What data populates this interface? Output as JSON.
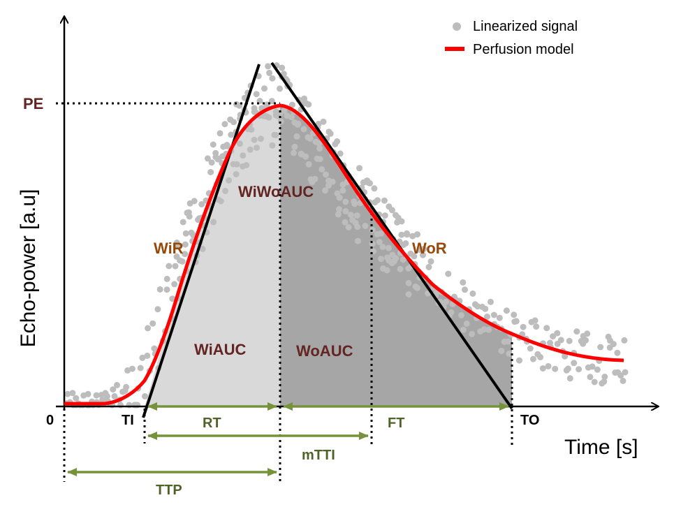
{
  "legend": {
    "signal_label": "Linearized signal",
    "model_label": "Perfusion model"
  },
  "axes": {
    "xlabel": "Time [s]",
    "ylabel": "Echo-power [a.u]",
    "origin_label": "0"
  },
  "parameters": {
    "pe": "PE",
    "wir": "WiR",
    "wor": "WoR",
    "wiwoauc": "WiWoAUC",
    "wiauc": "WiAUC",
    "woauc": "WoAUC",
    "ti": "TI",
    "to": "TO",
    "rt": "RT",
    "ft": "FT",
    "mtti": "mTTI",
    "ttp": "TTP"
  },
  "colors": {
    "signal": "#bdbdbd",
    "model": "#ff0000",
    "tangent": "#000000",
    "wash_in_area": "#d9d9d9",
    "wash_out_area": "#a6a6a6",
    "interval_arrow": "#76933c",
    "parameter_text": "#632523",
    "rate_text": "#984807",
    "interval_text": "#4f6228"
  }
}
